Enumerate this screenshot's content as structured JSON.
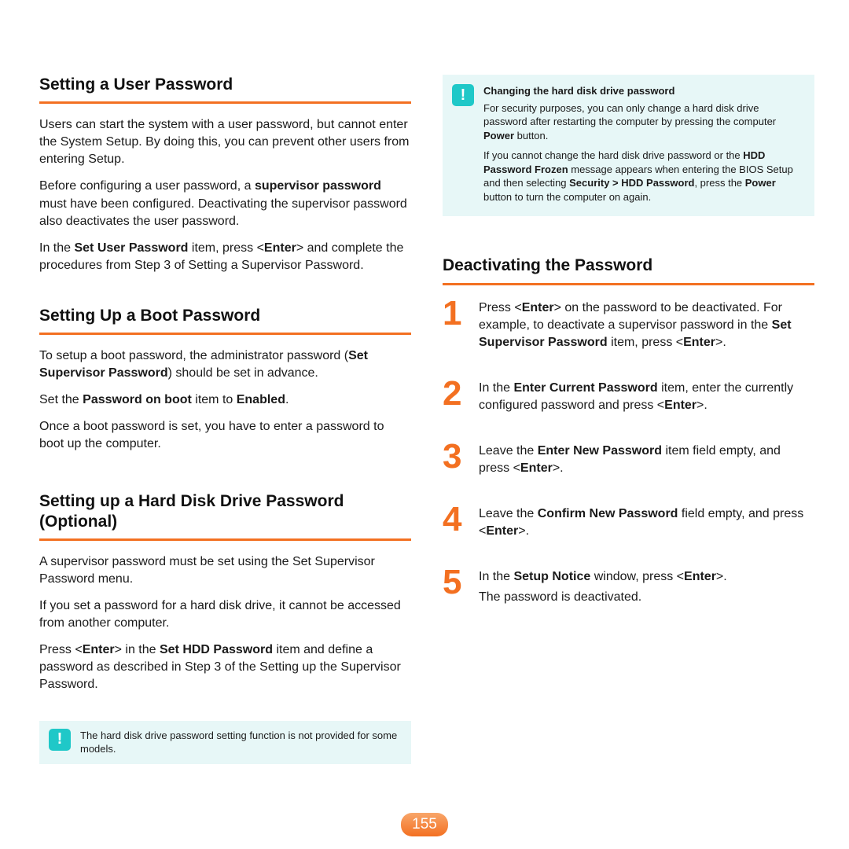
{
  "page_number": "155",
  "accent_color": "#f37021",
  "note_bg": "#e7f7f7",
  "note_icon_bg": "#1fc8c8",
  "left_column": {
    "sections": [
      {
        "title": "Setting a User Password",
        "paragraphs": [
          "Users can start the system with a user password, but cannot enter the System Setup. By doing this, you can prevent other users from entering Setup.",
          "Before configuring a user password, a <b>supervisor password</b> must have been configured. Deactivating the supervisor password also deactivates the user password.",
          "In the <b>Set User Password</b> item, press <<b>Enter</b>> and complete the procedures from Step 3 of Setting a Supervisor Password."
        ]
      },
      {
        "title": "Setting Up a Boot Password",
        "paragraphs": [
          "To setup a boot password, the administrator password (<b>Set Supervisor Password</b>) should be set in advance.",
          "Set the <b>Password on boot</b> item to <b>Enabled</b>.",
          "Once a boot password is set, you have to enter a password to boot up the computer."
        ]
      },
      {
        "title": "Setting up a Hard Disk Drive Password (Optional)",
        "paragraphs": [
          "A supervisor password must be set using the Set Supervisor Password menu.",
          "If you set a password for a hard disk drive, it cannot be accessed from another computer.",
          "Press <<b>Enter</b>> in the <b>Set HDD Password</b> item and define a password as described in Step 3 of the Setting up the Supervisor Password."
        ]
      }
    ],
    "note": {
      "icon": "!",
      "text": "The hard disk drive password setting function is not provided for some models."
    }
  },
  "right_column": {
    "top_note": {
      "icon": "!",
      "heading": "Changing the hard disk drive password",
      "paragraphs": [
        "For security purposes, you can only change a hard disk drive password after restarting the computer by pressing the computer <b>Power</b> button.",
        "If you cannot change the hard disk drive password or the <b>HDD Password Frozen</b> message appears when entering the BIOS Setup and then selecting <b>Security > HDD Password</b>, press the <b>Power</b> button to turn the computer on again."
      ]
    },
    "section_title": "Deactivating the Password",
    "steps": [
      {
        "num": "1",
        "html": "<p>Press <<b>Enter</b>> on the password to be deactivated. For example, to deactivate a supervisor password in the <b>Set Supervisor Password</b> item, press <<b>Enter</b>>.</p>"
      },
      {
        "num": "2",
        "html": "<p>In the <b>Enter Current Password</b> item, enter the currently configured password and press <<b>Enter</b>>.</p>"
      },
      {
        "num": "3",
        "html": "<p>Leave the <b>Enter New Password</b> item field empty, and press <<b>Enter</b>>.</p>"
      },
      {
        "num": "4",
        "html": "<p>Leave the <b>Confirm New Password</b> field empty, and press <<b>Enter</b>>.</p>"
      },
      {
        "num": "5",
        "html": "<p>In the <b>Setup Notice</b> window, press <<b>Enter</b>>.</p><p>The password is deactivated.</p>"
      }
    ]
  }
}
